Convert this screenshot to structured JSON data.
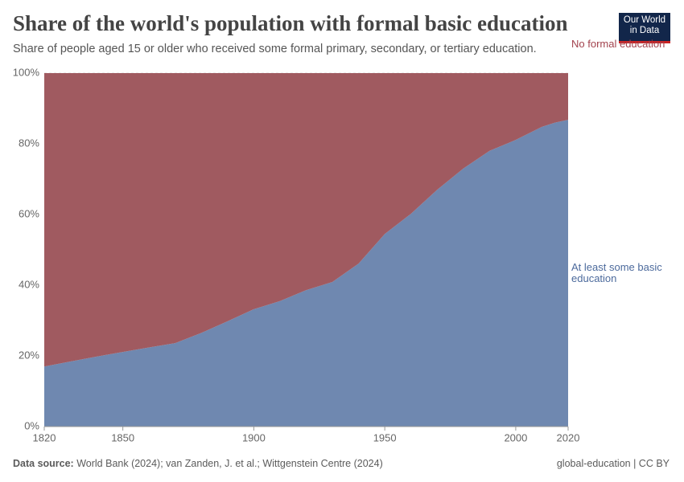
{
  "header": {
    "title": "Share of the world's population with formal basic education",
    "subtitle": "Share of people aged 15 or older who received some formal primary, secondary, or tertiary education.",
    "logo": "Our World in Data"
  },
  "chart_data": {
    "type": "stacked-area",
    "x": [
      1820,
      1830,
      1840,
      1850,
      1860,
      1870,
      1880,
      1890,
      1900,
      1910,
      1920,
      1930,
      1940,
      1950,
      1960,
      1970,
      1980,
      1990,
      2000,
      2010,
      2015,
      2020
    ],
    "series": [
      {
        "name": "At least some basic education",
        "color": "#6f88b0",
        "label_color": "#4c6a9c",
        "values": [
          17.0,
          18.4,
          19.8,
          21.1,
          22.4,
          23.6,
          26.5,
          29.8,
          33.2,
          35.5,
          38.6,
          40.9,
          46.1,
          54.5,
          60.2,
          67.0,
          73.0,
          78.0,
          81.1,
          84.8,
          86.0,
          86.8
        ]
      },
      {
        "name": "No formal education",
        "color": "#a05a60",
        "label_color": "#a2424d",
        "values": [
          83.0,
          81.6,
          80.2,
          78.9,
          77.6,
          76.4,
          73.5,
          70.2,
          66.8,
          64.5,
          61.4,
          59.1,
          53.9,
          45.5,
          39.8,
          33.0,
          27.0,
          22.0,
          18.9,
          15.2,
          14.0,
          13.2
        ]
      }
    ],
    "xlim": [
      1820,
      2020
    ],
    "xticks": [
      1820,
      1850,
      1900,
      1950,
      2000,
      2020
    ],
    "ylim": [
      0,
      100
    ],
    "yticks": [
      {
        "value": 0,
        "label": "0%"
      },
      {
        "value": 20,
        "label": "20%"
      },
      {
        "value": 40,
        "label": "40%"
      },
      {
        "value": 60,
        "label": "60%"
      },
      {
        "value": 80,
        "label": "80%"
      },
      {
        "value": 100,
        "label": "100%"
      }
    ],
    "grid": true
  },
  "footer": {
    "source_label": "Data source:",
    "source": "World Bank (2024); van Zanden, J. et al.; Wittgenstein Centre (2024)",
    "right": "global-education | CC BY"
  }
}
